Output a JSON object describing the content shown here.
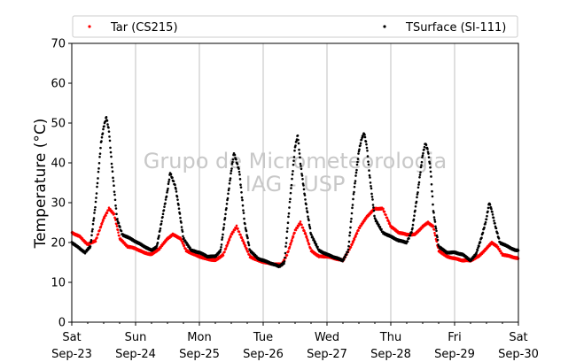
{
  "chart_data": {
    "type": "scatter",
    "title": "",
    "xlabel": "",
    "ylabel": "Temperature (°C)",
    "ylim": [
      0,
      70
    ],
    "yticks": [
      0,
      10,
      20,
      30,
      40,
      50,
      60,
      70
    ],
    "xlim": [
      "2017-09-23 00:00",
      "2017-09-30 00:00"
    ],
    "xticks": [
      {
        "day": "Sat",
        "date": "Sep-23"
      },
      {
        "day": "Sun",
        "date": "Sep-24"
      },
      {
        "day": "Mon",
        "date": "Sep-25"
      },
      {
        "day": "Tue",
        "date": "Sep-26"
      },
      {
        "day": "Wed",
        "date": "Sep-27"
      },
      {
        "day": "Thu",
        "date": "Sep-28"
      },
      {
        "day": "Fri",
        "date": "Sep-29"
      },
      {
        "day": "Sat",
        "date": "Sep-30"
      }
    ],
    "grid": "vertical",
    "legend_placement": "top",
    "watermark": [
      "Grupo de Micrometeorologia",
      "IAG - USP"
    ],
    "series": [
      {
        "name": "Tar (CS215)",
        "color": "#ff0000",
        "marker": "dot",
        "points": [
          [
            "Sep-23 00:00",
            22.5
          ],
          [
            "Sep-23 03:00",
            21.5
          ],
          [
            "Sep-23 06:00",
            19.5
          ],
          [
            "Sep-23 09:00",
            20.5
          ],
          [
            "Sep-23 12:00",
            26
          ],
          [
            "Sep-23 14:00",
            28.5
          ],
          [
            "Sep-23 16:00",
            27
          ],
          [
            "Sep-23 18:00",
            21
          ],
          [
            "Sep-23 21:00",
            19
          ],
          [
            "Sep-24 00:00",
            18.5
          ],
          [
            "Sep-24 03:00",
            17.5
          ],
          [
            "Sep-24 06:00",
            17
          ],
          [
            "Sep-24 09:00",
            18.5
          ],
          [
            "Sep-24 12:00",
            21
          ],
          [
            "Sep-24 14:00",
            22
          ],
          [
            "Sep-24 17:00",
            21
          ],
          [
            "Sep-24 19:00",
            18
          ],
          [
            "Sep-24 22:00",
            17
          ],
          [
            "Sep-25 02:00",
            16
          ],
          [
            "Sep-25 06:00",
            15.5
          ],
          [
            "Sep-25 09:00",
            17
          ],
          [
            "Sep-25 12:00",
            22
          ],
          [
            "Sep-25 14:00",
            24
          ],
          [
            "Sep-25 16:00",
            21
          ],
          [
            "Sep-25 19:00",
            16.5
          ],
          [
            "Sep-25 22:00",
            15.5
          ],
          [
            "Sep-26 02:00",
            14.8
          ],
          [
            "Sep-26 05:00",
            14.5
          ],
          [
            "Sep-26 07:00",
            14.5
          ],
          [
            "Sep-26 09:00",
            17
          ],
          [
            "Sep-26 12:00",
            23
          ],
          [
            "Sep-26 14:00",
            25
          ],
          [
            "Sep-26 16:00",
            22
          ],
          [
            "Sep-26 18:00",
            18
          ],
          [
            "Sep-26 21:00",
            16.5
          ],
          [
            "Sep-27 00:00",
            16.5
          ],
          [
            "Sep-27 03:00",
            16
          ],
          [
            "Sep-27 06:00",
            15.5
          ],
          [
            "Sep-27 09:00",
            19
          ],
          [
            "Sep-27 12:00",
            23.5
          ],
          [
            "Sep-27 15:00",
            26.5
          ],
          [
            "Sep-27 18:00",
            28.5
          ],
          [
            "Sep-27 21:00",
            28.5
          ],
          [
            "Sep-28 00:00",
            24
          ],
          [
            "Sep-28 03:00",
            22.5
          ],
          [
            "Sep-28 06:00",
            22
          ],
          [
            "Sep-28 09:00",
            22
          ],
          [
            "Sep-28 12:00",
            24
          ],
          [
            "Sep-28 14:00",
            25
          ],
          [
            "Sep-28 16:00",
            24
          ],
          [
            "Sep-28 18:00",
            18
          ],
          [
            "Sep-28 21:00",
            16.5
          ],
          [
            "Sep-29 00:00",
            16
          ],
          [
            "Sep-29 03:00",
            15.5
          ],
          [
            "Sep-29 06:00",
            15.5
          ],
          [
            "Sep-29 09:00",
            16.5
          ],
          [
            "Sep-29 12:00",
            18.5
          ],
          [
            "Sep-29 14:00",
            20
          ],
          [
            "Sep-29 16:00",
            19
          ],
          [
            "Sep-29 18:00",
            17
          ],
          [
            "Sep-29 21:00",
            16.5
          ],
          [
            "Sep-30 00:00",
            16
          ]
        ]
      },
      {
        "name": "TSurface (SI-111)",
        "color": "#000000",
        "marker": "dot",
        "points": [
          [
            "Sep-23 00:00",
            20
          ],
          [
            "Sep-23 03:00",
            18.5
          ],
          [
            "Sep-23 05:00",
            17.5
          ],
          [
            "Sep-23 07:00",
            19
          ],
          [
            "Sep-23 09:00",
            30
          ],
          [
            "Sep-23 11:00",
            45
          ],
          [
            "Sep-23 12:00",
            49
          ],
          [
            "Sep-23 13:00",
            51.5
          ],
          [
            "Sep-23 14:00",
            48
          ],
          [
            "Sep-23 15:00",
            40
          ],
          [
            "Sep-23 17:00",
            26
          ],
          [
            "Sep-23 19:00",
            22
          ],
          [
            "Sep-23 22:00",
            21
          ],
          [
            "Sep-24 02:00",
            19.5
          ],
          [
            "Sep-24 06:00",
            18
          ],
          [
            "Sep-24 08:00",
            19
          ],
          [
            "Sep-24 10:00",
            26
          ],
          [
            "Sep-24 12:00",
            33
          ],
          [
            "Sep-24 13:00",
            37.5
          ],
          [
            "Sep-24 15:00",
            34
          ],
          [
            "Sep-24 16:00",
            30
          ],
          [
            "Sep-24 18:00",
            21
          ],
          [
            "Sep-24 21:00",
            18
          ],
          [
            "Sep-25 00:00",
            17.5
          ],
          [
            "Sep-25 03:00",
            16.5
          ],
          [
            "Sep-25 06:00",
            16.5
          ],
          [
            "Sep-25 08:00",
            18
          ],
          [
            "Sep-25 10:00",
            28
          ],
          [
            "Sep-25 12:00",
            38
          ],
          [
            "Sep-25 13:00",
            42.5
          ],
          [
            "Sep-25 15:00",
            38
          ],
          [
            "Sep-25 17:00",
            25
          ],
          [
            "Sep-25 19:00",
            18
          ],
          [
            "Sep-25 22:00",
            16
          ],
          [
            "Sep-26 02:00",
            15
          ],
          [
            "Sep-26 06:00",
            14
          ],
          [
            "Sep-26 08:00",
            15
          ],
          [
            "Sep-26 10:00",
            30
          ],
          [
            "Sep-26 12:00",
            44
          ],
          [
            "Sep-26 13:00",
            47
          ],
          [
            "Sep-26 14:00",
            40
          ],
          [
            "Sep-26 16:00",
            30
          ],
          [
            "Sep-26 18:00",
            22
          ],
          [
            "Sep-26 21:00",
            18
          ],
          [
            "Sep-27 00:00",
            17
          ],
          [
            "Sep-27 04:00",
            16
          ],
          [
            "Sep-27 06:00",
            15.5
          ],
          [
            "Sep-27 08:00",
            18
          ],
          [
            "Sep-27 10:00",
            32
          ],
          [
            "Sep-27 12:00",
            43
          ],
          [
            "Sep-27 13:00",
            46
          ],
          [
            "Sep-27 14:00",
            47.5
          ],
          [
            "Sep-27 15:00",
            44
          ],
          [
            "Sep-27 16:00",
            37
          ],
          [
            "Sep-27 18:00",
            26
          ],
          [
            "Sep-27 21:00",
            22.5
          ],
          [
            "Sep-28 00:00",
            21.5
          ],
          [
            "Sep-28 03:00",
            20.5
          ],
          [
            "Sep-28 06:00",
            20
          ],
          [
            "Sep-28 08:00",
            23
          ],
          [
            "Sep-28 10:00",
            32
          ],
          [
            "Sep-28 12:00",
            42
          ],
          [
            "Sep-28 13:00",
            45
          ],
          [
            "Sep-28 14:00",
            43
          ],
          [
            "Sep-28 15:00",
            38
          ],
          [
            "Sep-28 16:00",
            28
          ],
          [
            "Sep-28 18:00",
            19
          ],
          [
            "Sep-28 21:00",
            17.5
          ],
          [
            "Sep-29 00:00",
            17.5
          ],
          [
            "Sep-29 03:00",
            17
          ],
          [
            "Sep-29 06:00",
            15.5
          ],
          [
            "Sep-29 08:00",
            17
          ],
          [
            "Sep-29 10:00",
            21
          ],
          [
            "Sep-29 12:00",
            26
          ],
          [
            "Sep-29 13:00",
            30
          ],
          [
            "Sep-29 14:00",
            28
          ],
          [
            "Sep-29 15:00",
            25
          ],
          [
            "Sep-29 17:00",
            20
          ],
          [
            "Sep-29 20:00",
            19
          ],
          [
            "Sep-29 23:00",
            18
          ],
          [
            "Sep-30 00:00",
            18
          ]
        ]
      }
    ]
  }
}
